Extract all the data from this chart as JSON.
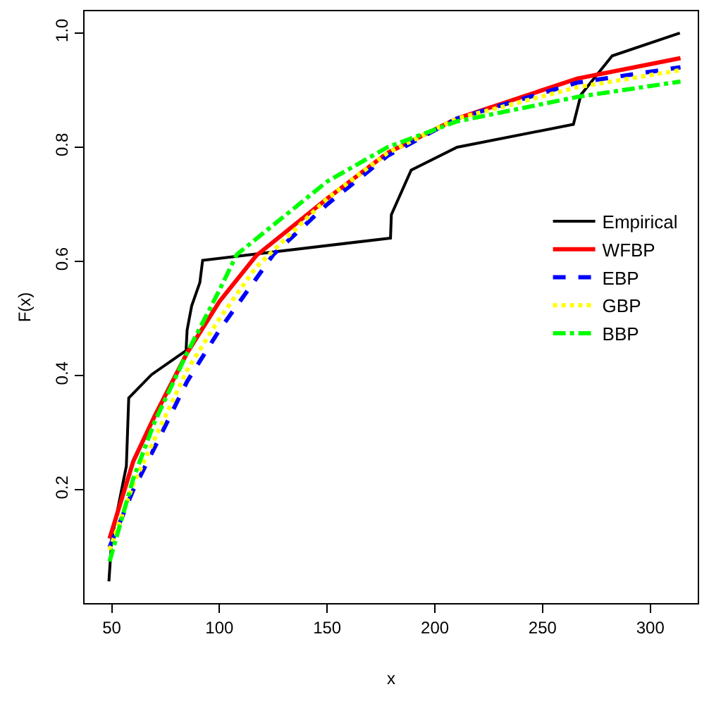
{
  "chart_data": {
    "type": "line",
    "xlabel": "x",
    "ylabel": "F(x)",
    "xlim": [
      37.4,
      322
    ],
    "ylim": [
      0.002,
      1.038
    ],
    "xticks": [
      50,
      100,
      150,
      200,
      250,
      300
    ],
    "yticks": [
      0.2,
      0.4,
      0.6,
      0.8,
      {
        "value": 1,
        "label": "1.0"
      }
    ],
    "legend": "right",
    "marker": "none",
    "series": [
      {
        "name": "Empirical",
        "color": "#000000",
        "line_style": "solid",
        "x": [
          48.7,
          50,
          56.8,
          57.9,
          68.5,
          84.5,
          85,
          87.1,
          90.9,
          92.2,
          179.4,
          179.8,
          189,
          210.3,
          264.3,
          267.8,
          282.3,
          313.7
        ],
        "values": [
          0.04,
          0.114,
          0.242,
          0.361,
          0.402,
          0.444,
          0.48,
          0.522,
          0.563,
          0.602,
          0.641,
          0.682,
          0.76,
          0.8,
          0.84,
          0.892,
          0.96,
          1.0
        ]
      },
      {
        "name": "WFBP",
        "color": "#ff0000",
        "line_style": "solid",
        "x": [
          49,
          60,
          70,
          85,
          100,
          117,
          150,
          178,
          210,
          266,
          314
        ],
        "values": [
          0.115,
          0.25,
          0.33,
          0.44,
          0.53,
          0.61,
          0.71,
          0.79,
          0.85,
          0.92,
          0.956
        ]
      },
      {
        "name": "EBP",
        "color": "#0000ff",
        "line_style": "dashed",
        "x": [
          49,
          60,
          70,
          85,
          100,
          125,
          150,
          178,
          210,
          266,
          314
        ],
        "values": [
          0.1,
          0.2,
          0.275,
          0.39,
          0.48,
          0.612,
          0.7,
          0.785,
          0.85,
          0.913,
          0.94
        ]
      },
      {
        "name": "GBP",
        "color": "#ffff00",
        "line_style": "dotted",
        "x": [
          49,
          60,
          70,
          85,
          100,
          117,
          150,
          178,
          210,
          266,
          314
        ],
        "values": [
          0.095,
          0.21,
          0.29,
          0.41,
          0.5,
          0.59,
          0.71,
          0.79,
          0.85,
          0.905,
          0.935
        ]
      },
      {
        "name": "BBP",
        "color": "#00ff00",
        "line_style": "dashdot",
        "x": [
          49,
          60,
          70,
          85,
          100,
          108,
          150,
          178,
          210,
          266,
          314
        ],
        "values": [
          0.075,
          0.22,
          0.32,
          0.44,
          0.55,
          0.612,
          0.74,
          0.8,
          0.845,
          0.888,
          0.915
        ]
      }
    ]
  }
}
